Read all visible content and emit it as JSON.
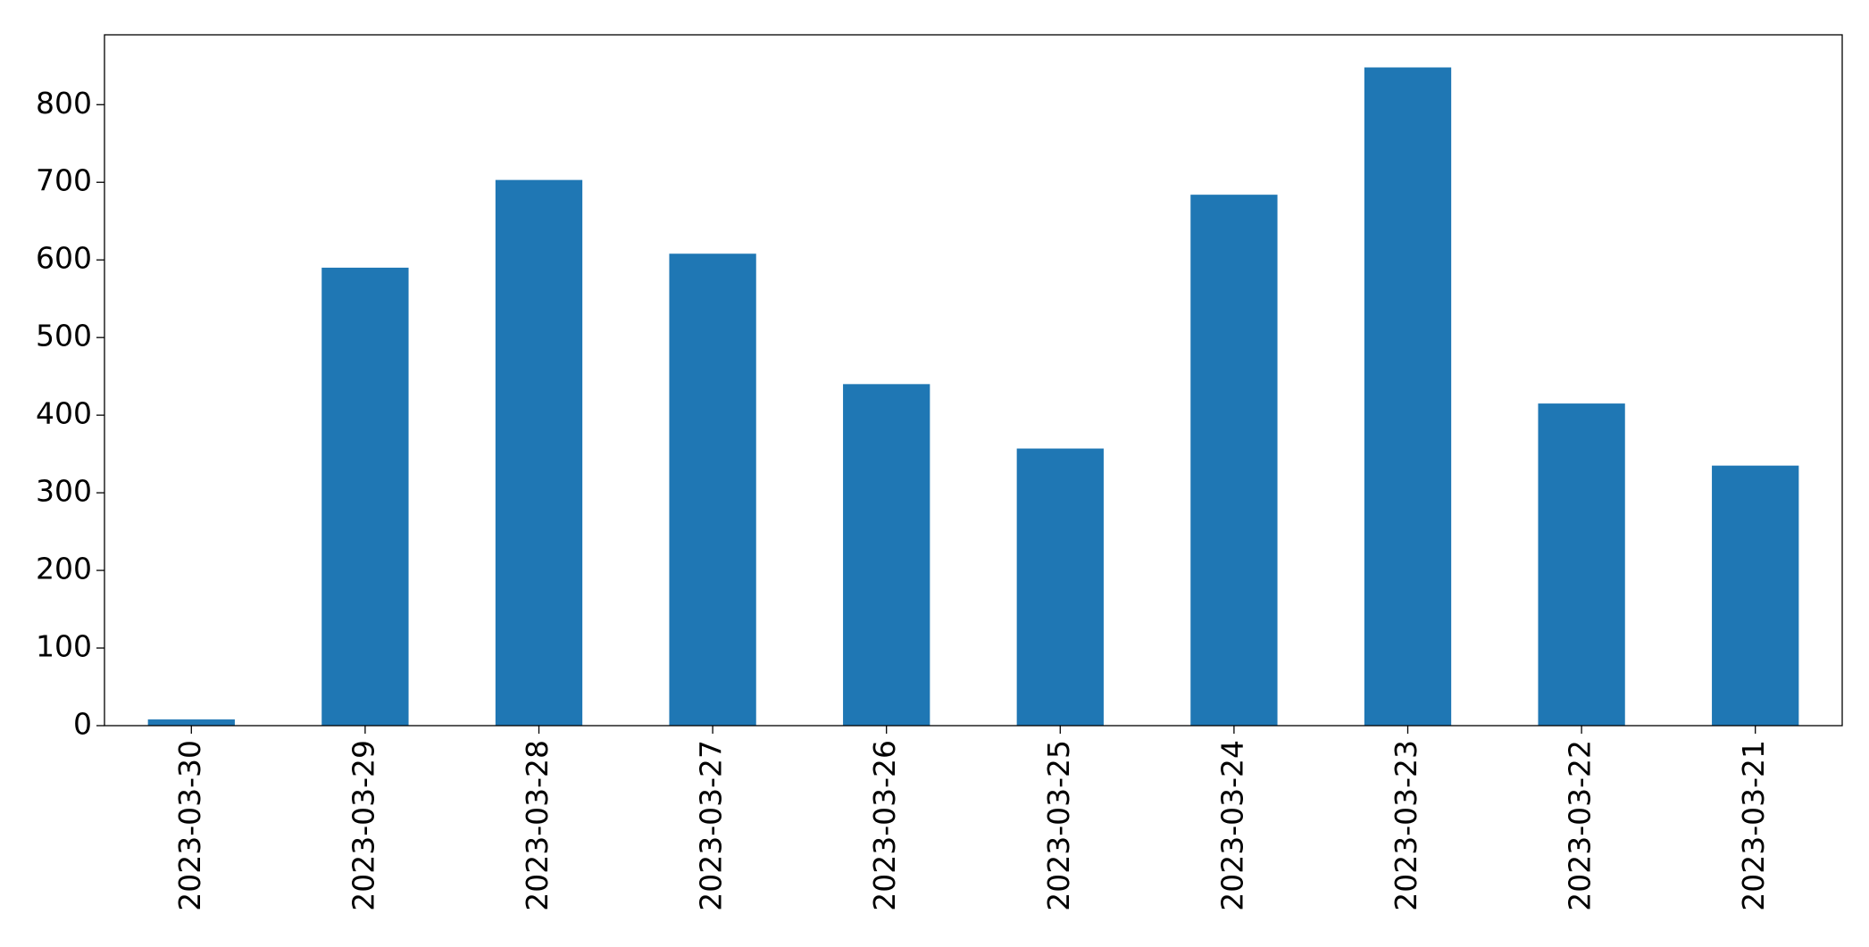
{
  "chart_data": {
    "type": "bar",
    "categories": [
      "2023-03-30",
      "2023-03-29",
      "2023-03-28",
      "2023-03-27",
      "2023-03-26",
      "2023-03-25",
      "2023-03-24",
      "2023-03-23",
      "2023-03-22",
      "2023-03-21"
    ],
    "values": [
      8,
      590,
      703,
      608,
      440,
      357,
      684,
      848,
      415,
      335
    ],
    "color": "#1f77b4",
    "ylim": [
      0,
      890
    ],
    "yticks": [
      0,
      100,
      200,
      300,
      400,
      500,
      600,
      700,
      800
    ],
    "grid": false
  }
}
